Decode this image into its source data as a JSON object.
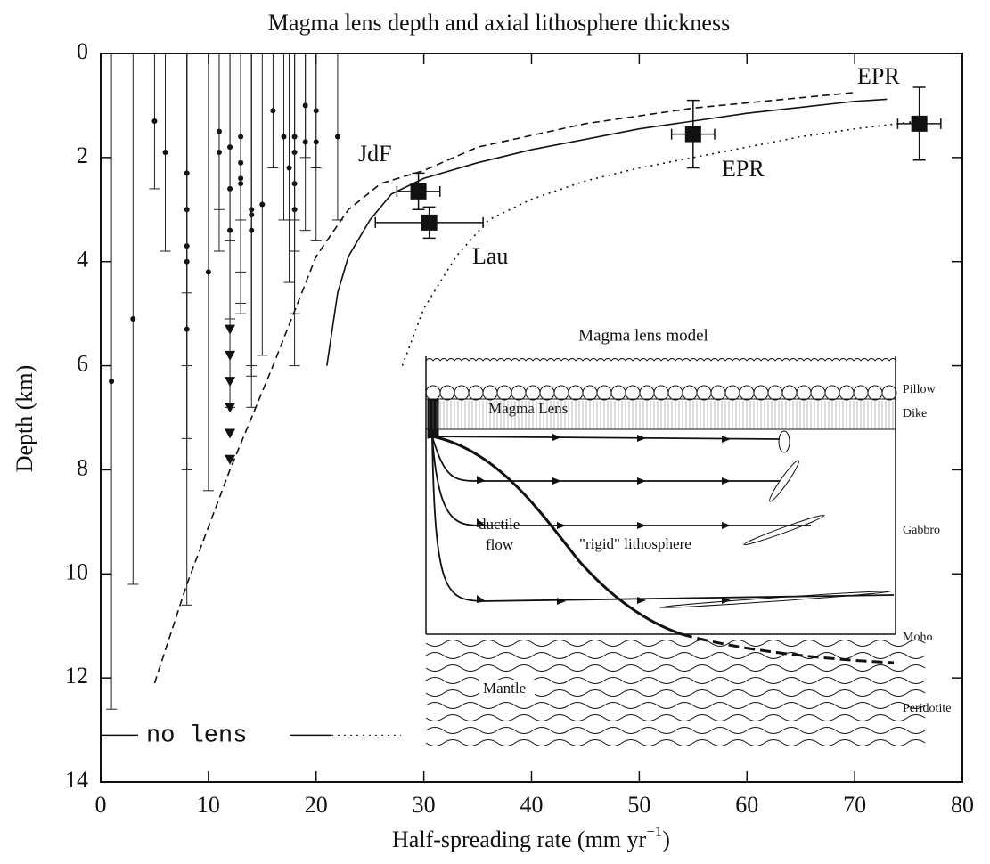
{
  "chart_data": {
    "type": "scatter",
    "title": "Magma lens depth and axial lithosphere thickness",
    "xlabel": [
      "Half-spreading rate (mm yr",
      "−1",
      ")"
    ],
    "ylabel": "Depth (km)",
    "xlim": [
      0,
      80
    ],
    "ylim": [
      0,
      14
    ],
    "y_inverted": true,
    "xticks": [
      0,
      10,
      20,
      30,
      40,
      50,
      60,
      70,
      80
    ],
    "yticks": [
      0,
      2,
      4,
      6,
      8,
      10,
      12,
      14
    ],
    "points": {
      "x": [
        1,
        3,
        5,
        6,
        8,
        8,
        8,
        8,
        8,
        10,
        11,
        11,
        12,
        12,
        12,
        13,
        13,
        13,
        13,
        14,
        14,
        14,
        15,
        16,
        17,
        17.5,
        18,
        18,
        18,
        18,
        19,
        19,
        20,
        20,
        22
      ],
      "y": [
        6.3,
        5.1,
        1.3,
        1.9,
        2.3,
        3.0,
        3.7,
        4.0,
        5.3,
        4.2,
        1.5,
        1.9,
        1.8,
        2.6,
        3.4,
        1.6,
        2.1,
        2.4,
        2.5,
        3.0,
        3.1,
        3.4,
        2.9,
        1.1,
        1.6,
        2.2,
        1.6,
        1.9,
        2.5,
        3.0,
        1.0,
        1.7,
        1.1,
        1.7,
        1.6
      ],
      "bar_bottom": [
        12.6,
        10.2,
        2.6,
        3.8,
        4.6,
        6.0,
        7.4,
        8.0,
        10.6,
        8.4,
        3.0,
        3.8,
        3.6,
        5.1,
        6.8,
        3.2,
        4.2,
        4.8,
        5.0,
        6.0,
        6.2,
        6.8,
        5.8,
        2.2,
        3.2,
        4.4,
        3.2,
        3.8,
        5.0,
        6.0,
        2.0,
        3.4,
        2.2,
        3.6,
        3.2
      ]
    },
    "triangles": {
      "x": [
        12,
        12,
        12,
        12,
        12,
        12
      ],
      "y": [
        5.3,
        5.8,
        6.3,
        6.8,
        7.3,
        7.8
      ]
    },
    "squares": {
      "x": [
        29.5,
        30.5,
        55,
        76
      ],
      "y": [
        2.65,
        3.25,
        1.55,
        1.35
      ],
      "xerr": [
        2,
        5,
        2,
        2
      ],
      "yerr": [
        0.35,
        0.3,
        0.65,
        0.7
      ]
    },
    "curves": [
      {
        "style": "solid",
        "x": [
          21,
          22,
          23,
          25,
          27,
          30,
          35,
          40,
          50,
          60,
          70,
          73
        ],
        "y": [
          6.0,
          4.6,
          3.9,
          3.2,
          2.7,
          2.4,
          2.1,
          1.85,
          1.45,
          1.15,
          0.92,
          0.88
        ]
      },
      {
        "style": "dashed",
        "x": [
          5,
          8,
          12,
          16,
          20,
          23,
          26,
          30,
          35,
          45,
          55,
          65,
          70
        ],
        "y": [
          12.1,
          10.2,
          8.0,
          6.0,
          3.9,
          3.0,
          2.5,
          2.25,
          1.8,
          1.35,
          1.05,
          0.85,
          0.75
        ]
      },
      {
        "style": "dotted",
        "x": [
          28,
          30,
          33,
          36,
          40,
          45,
          50,
          55,
          60,
          65,
          70,
          76
        ],
        "y": [
          6.0,
          4.9,
          3.9,
          3.2,
          2.8,
          2.45,
          2.2,
          2.0,
          1.8,
          1.6,
          1.45,
          1.3
        ]
      }
    ],
    "no_lens": {
      "label": "no lens",
      "depth": 13.1
    },
    "annotations": [
      "JdF",
      "Lau",
      "EPR",
      "EPR"
    ]
  },
  "inset": {
    "title": "Magma lens model",
    "layers": [
      "Pillow",
      "Dike",
      "Gabbro",
      "Moho",
      "Peridotite"
    ],
    "magma_lens": "Magma Lens",
    "ductile": [
      "ductile",
      "flow"
    ],
    "rigid": "\"rigid\" lithosphere",
    "mantle": "Mantle"
  }
}
